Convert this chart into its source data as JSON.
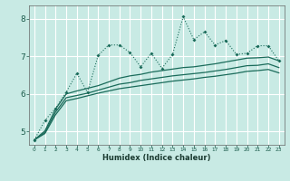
{
  "xlabel": "Humidex (Indice chaleur)",
  "ylabel": "",
  "xlim": [
    -0.5,
    23.5
  ],
  "ylim": [
    4.65,
    8.35
  ],
  "xticks": [
    0,
    1,
    2,
    3,
    4,
    5,
    6,
    7,
    8,
    9,
    10,
    11,
    12,
    13,
    14,
    15,
    16,
    17,
    18,
    19,
    20,
    21,
    22,
    23
  ],
  "yticks": [
    5,
    6,
    7,
    8
  ],
  "bg_color": "#c8eae4",
  "line_color": "#1a6b5a",
  "grid_color": "#ffffff",
  "line1_x": [
    0,
    1,
    2,
    3,
    4,
    5,
    6,
    7,
    8,
    9,
    10,
    11,
    12,
    13,
    14,
    15,
    16,
    17,
    18,
    19,
    20,
    21,
    22,
    23
  ],
  "line1_y": [
    4.78,
    5.3,
    5.62,
    6.05,
    6.55,
    6.04,
    7.02,
    7.3,
    7.3,
    7.1,
    6.72,
    7.08,
    6.68,
    7.05,
    8.05,
    7.44,
    7.65,
    7.3,
    7.42,
    7.05,
    7.08,
    7.28,
    7.28,
    6.88
  ],
  "line2_x": [
    0,
    1,
    2,
    3,
    4,
    5,
    6,
    7,
    8,
    9,
    10,
    11,
    12,
    13,
    14,
    15,
    16,
    17,
    18,
    19,
    20,
    21,
    22,
    23
  ],
  "line2_y": [
    4.78,
    5.02,
    5.6,
    6.0,
    6.08,
    6.15,
    6.22,
    6.32,
    6.42,
    6.48,
    6.52,
    6.58,
    6.62,
    6.66,
    6.7,
    6.72,
    6.76,
    6.8,
    6.85,
    6.9,
    6.95,
    6.96,
    6.98,
    6.88
  ],
  "line3_x": [
    0,
    1,
    2,
    3,
    4,
    5,
    6,
    7,
    8,
    9,
    10,
    11,
    12,
    13,
    14,
    15,
    16,
    17,
    18,
    19,
    20,
    21,
    22,
    23
  ],
  "line3_y": [
    4.78,
    4.98,
    5.52,
    5.9,
    5.96,
    6.02,
    6.1,
    6.18,
    6.26,
    6.3,
    6.36,
    6.4,
    6.44,
    6.48,
    6.51,
    6.54,
    6.57,
    6.61,
    6.65,
    6.7,
    6.75,
    6.76,
    6.8,
    6.7
  ],
  "line4_x": [
    0,
    1,
    2,
    3,
    4,
    5,
    6,
    7,
    8,
    9,
    10,
    11,
    12,
    13,
    14,
    15,
    16,
    17,
    18,
    19,
    20,
    21,
    22,
    23
  ],
  "line4_y": [
    4.78,
    4.95,
    5.45,
    5.82,
    5.88,
    5.95,
    6.02,
    6.08,
    6.14,
    6.18,
    6.22,
    6.26,
    6.3,
    6.34,
    6.37,
    6.4,
    6.44,
    6.47,
    6.51,
    6.55,
    6.6,
    6.62,
    6.65,
    6.56
  ]
}
